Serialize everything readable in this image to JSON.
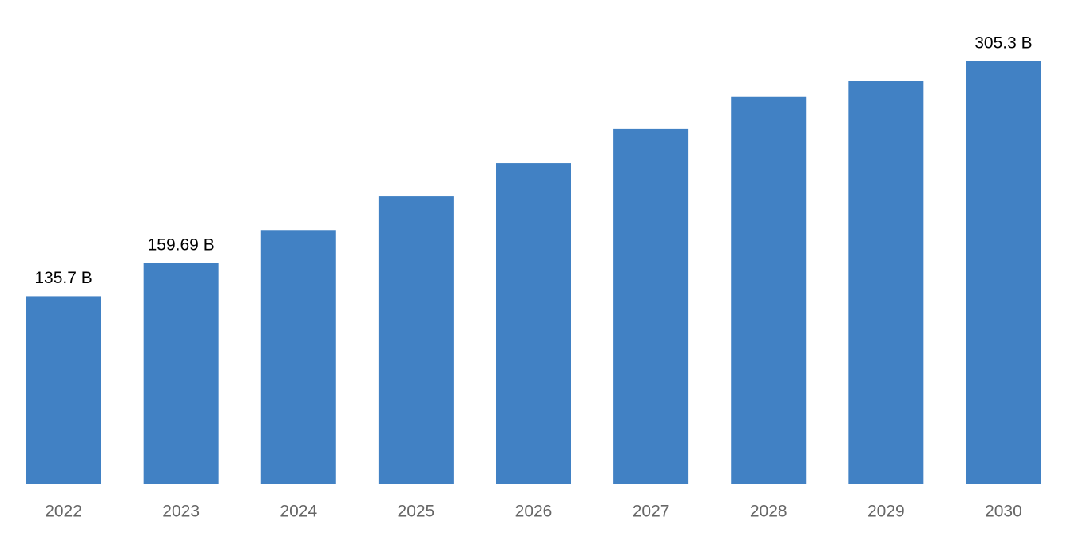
{
  "chart_data": {
    "type": "bar",
    "categories": [
      "2022",
      "2023",
      "2024",
      "2025",
      "2026",
      "2027",
      "2028",
      "2029",
      "2030"
    ],
    "values": [
      135.7,
      159.69,
      183.6,
      207.9,
      232.1,
      256.4,
      280.1,
      291.0,
      305.3
    ],
    "value_labels": [
      "135.7 B",
      "159.69 B",
      null,
      null,
      null,
      null,
      null,
      null,
      "305.3 B"
    ],
    "color": "#4181c4"
  }
}
